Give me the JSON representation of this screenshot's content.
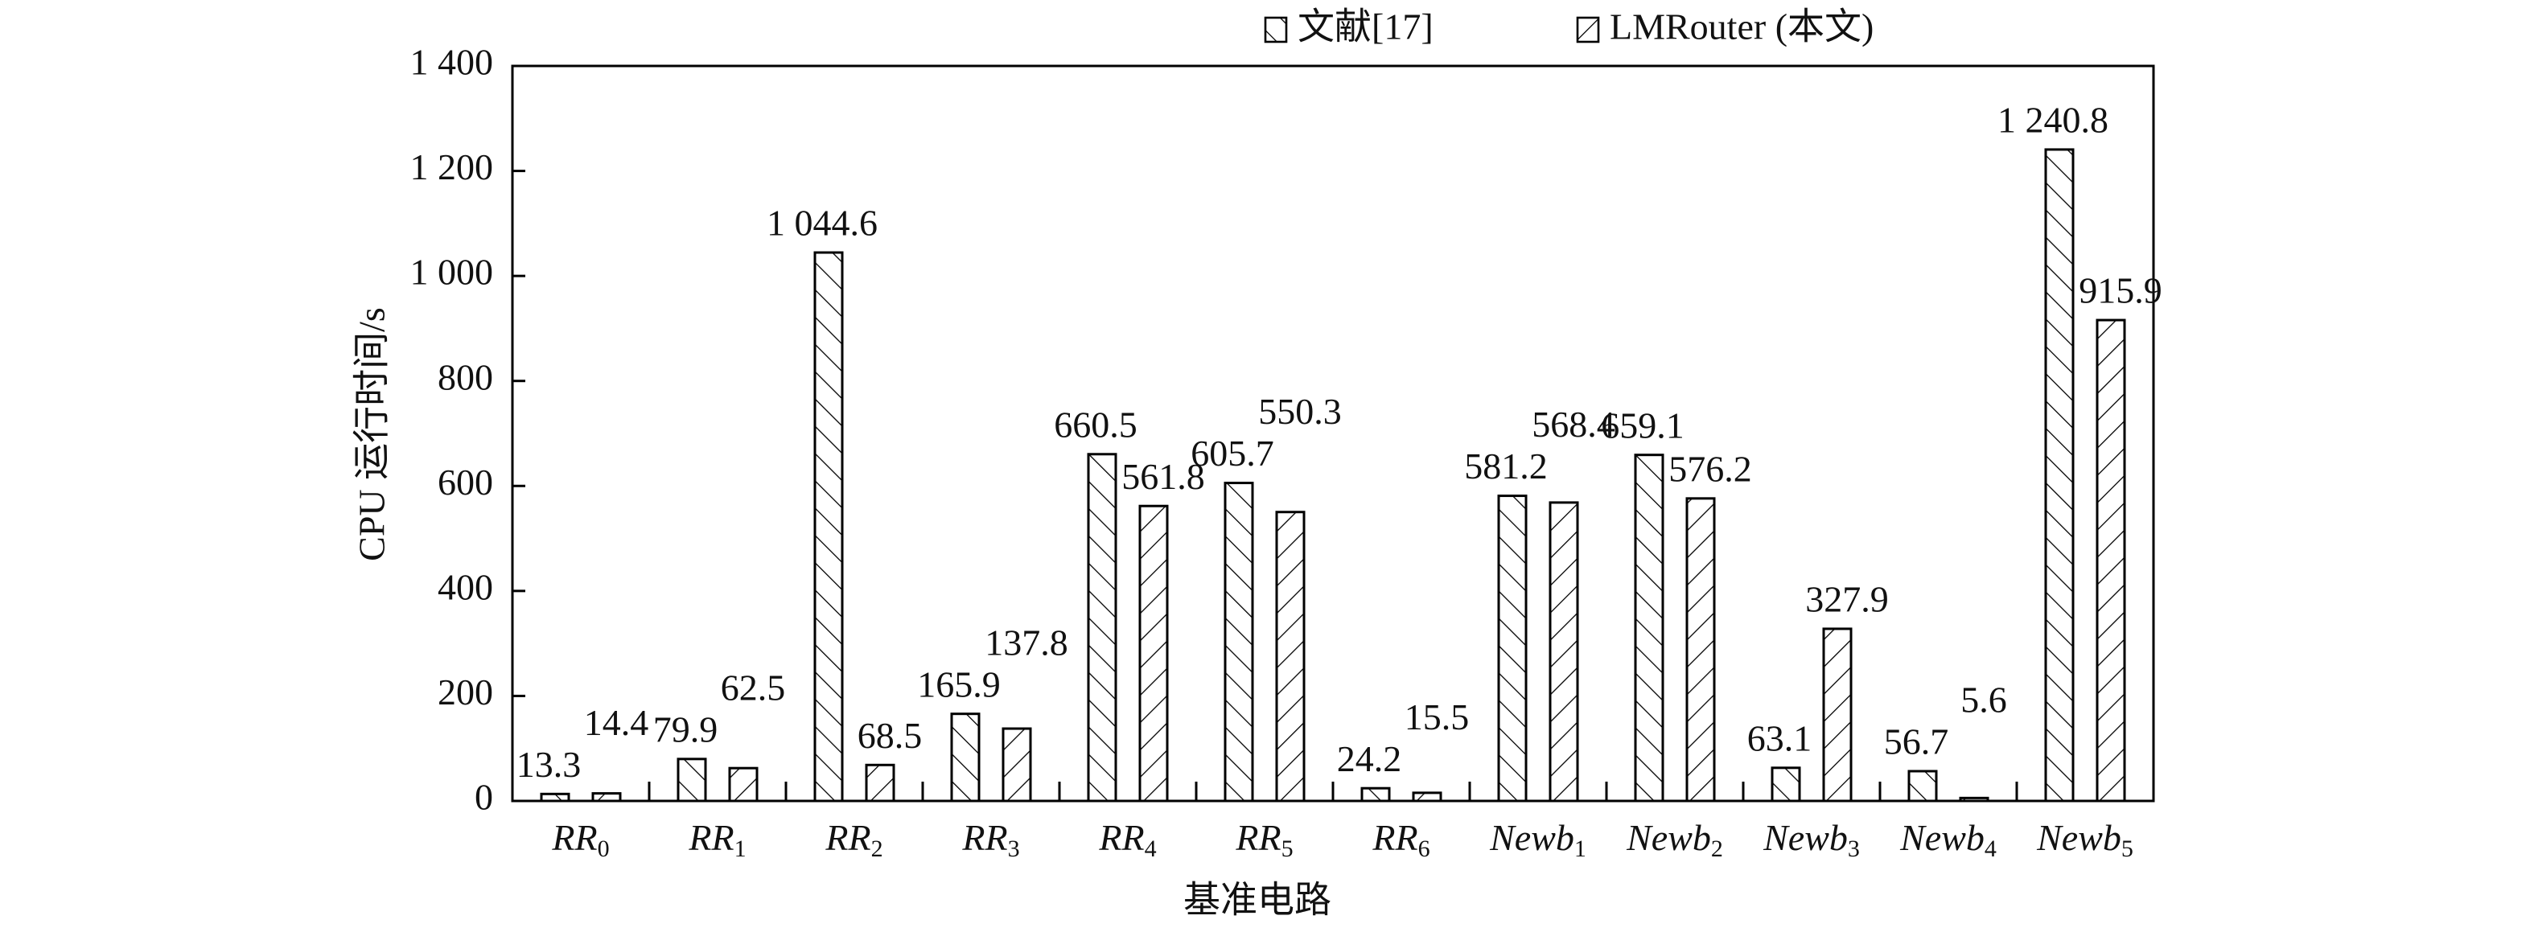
{
  "chart_data": {
    "type": "bar",
    "x_label": "基准电路",
    "y_label": "CPU 运行时间/s",
    "categories": [
      "RR0",
      "RR1",
      "RR2",
      "RR3",
      "RR4",
      "RR5",
      "RR6",
      "Newb1",
      "Newb2",
      "Newb3",
      "Newb4",
      "Newb5"
    ],
    "series": [
      {
        "name": "文献[17]",
        "color": "#000000",
        "hatch": "\\",
        "values": [
          13.3,
          79.9,
          1044.6,
          165.9,
          660.5,
          605.7,
          24.2,
          581.2,
          659.1,
          63.1,
          56.7,
          1240.8
        ],
        "value_labels": [
          "13.3",
          "79.9",
          "1 044.6",
          "165.9",
          "660.5",
          "605.7",
          "24.2",
          "581.2",
          "659.1",
          "63.1",
          "56.7",
          "1 240.8"
        ]
      },
      {
        "name": "LMRouter (本文)",
        "color": "#000000",
        "hatch": "/",
        "values": [
          14.4,
          62.5,
          68.5,
          137.8,
          561.8,
          550.3,
          15.5,
          568.4,
          576.2,
          327.9,
          5.6,
          915.9
        ]
      }
    ],
    "ylim": [
      0,
      1400
    ],
    "yticks": [
      0,
      200,
      400,
      600,
      800,
      {
        "value": 1000,
        "label": "1 000"
      },
      {
        "value": 1200,
        "label": "1 200"
      },
      {
        "value": 1400,
        "label": "1 400"
      }
    ]
  }
}
